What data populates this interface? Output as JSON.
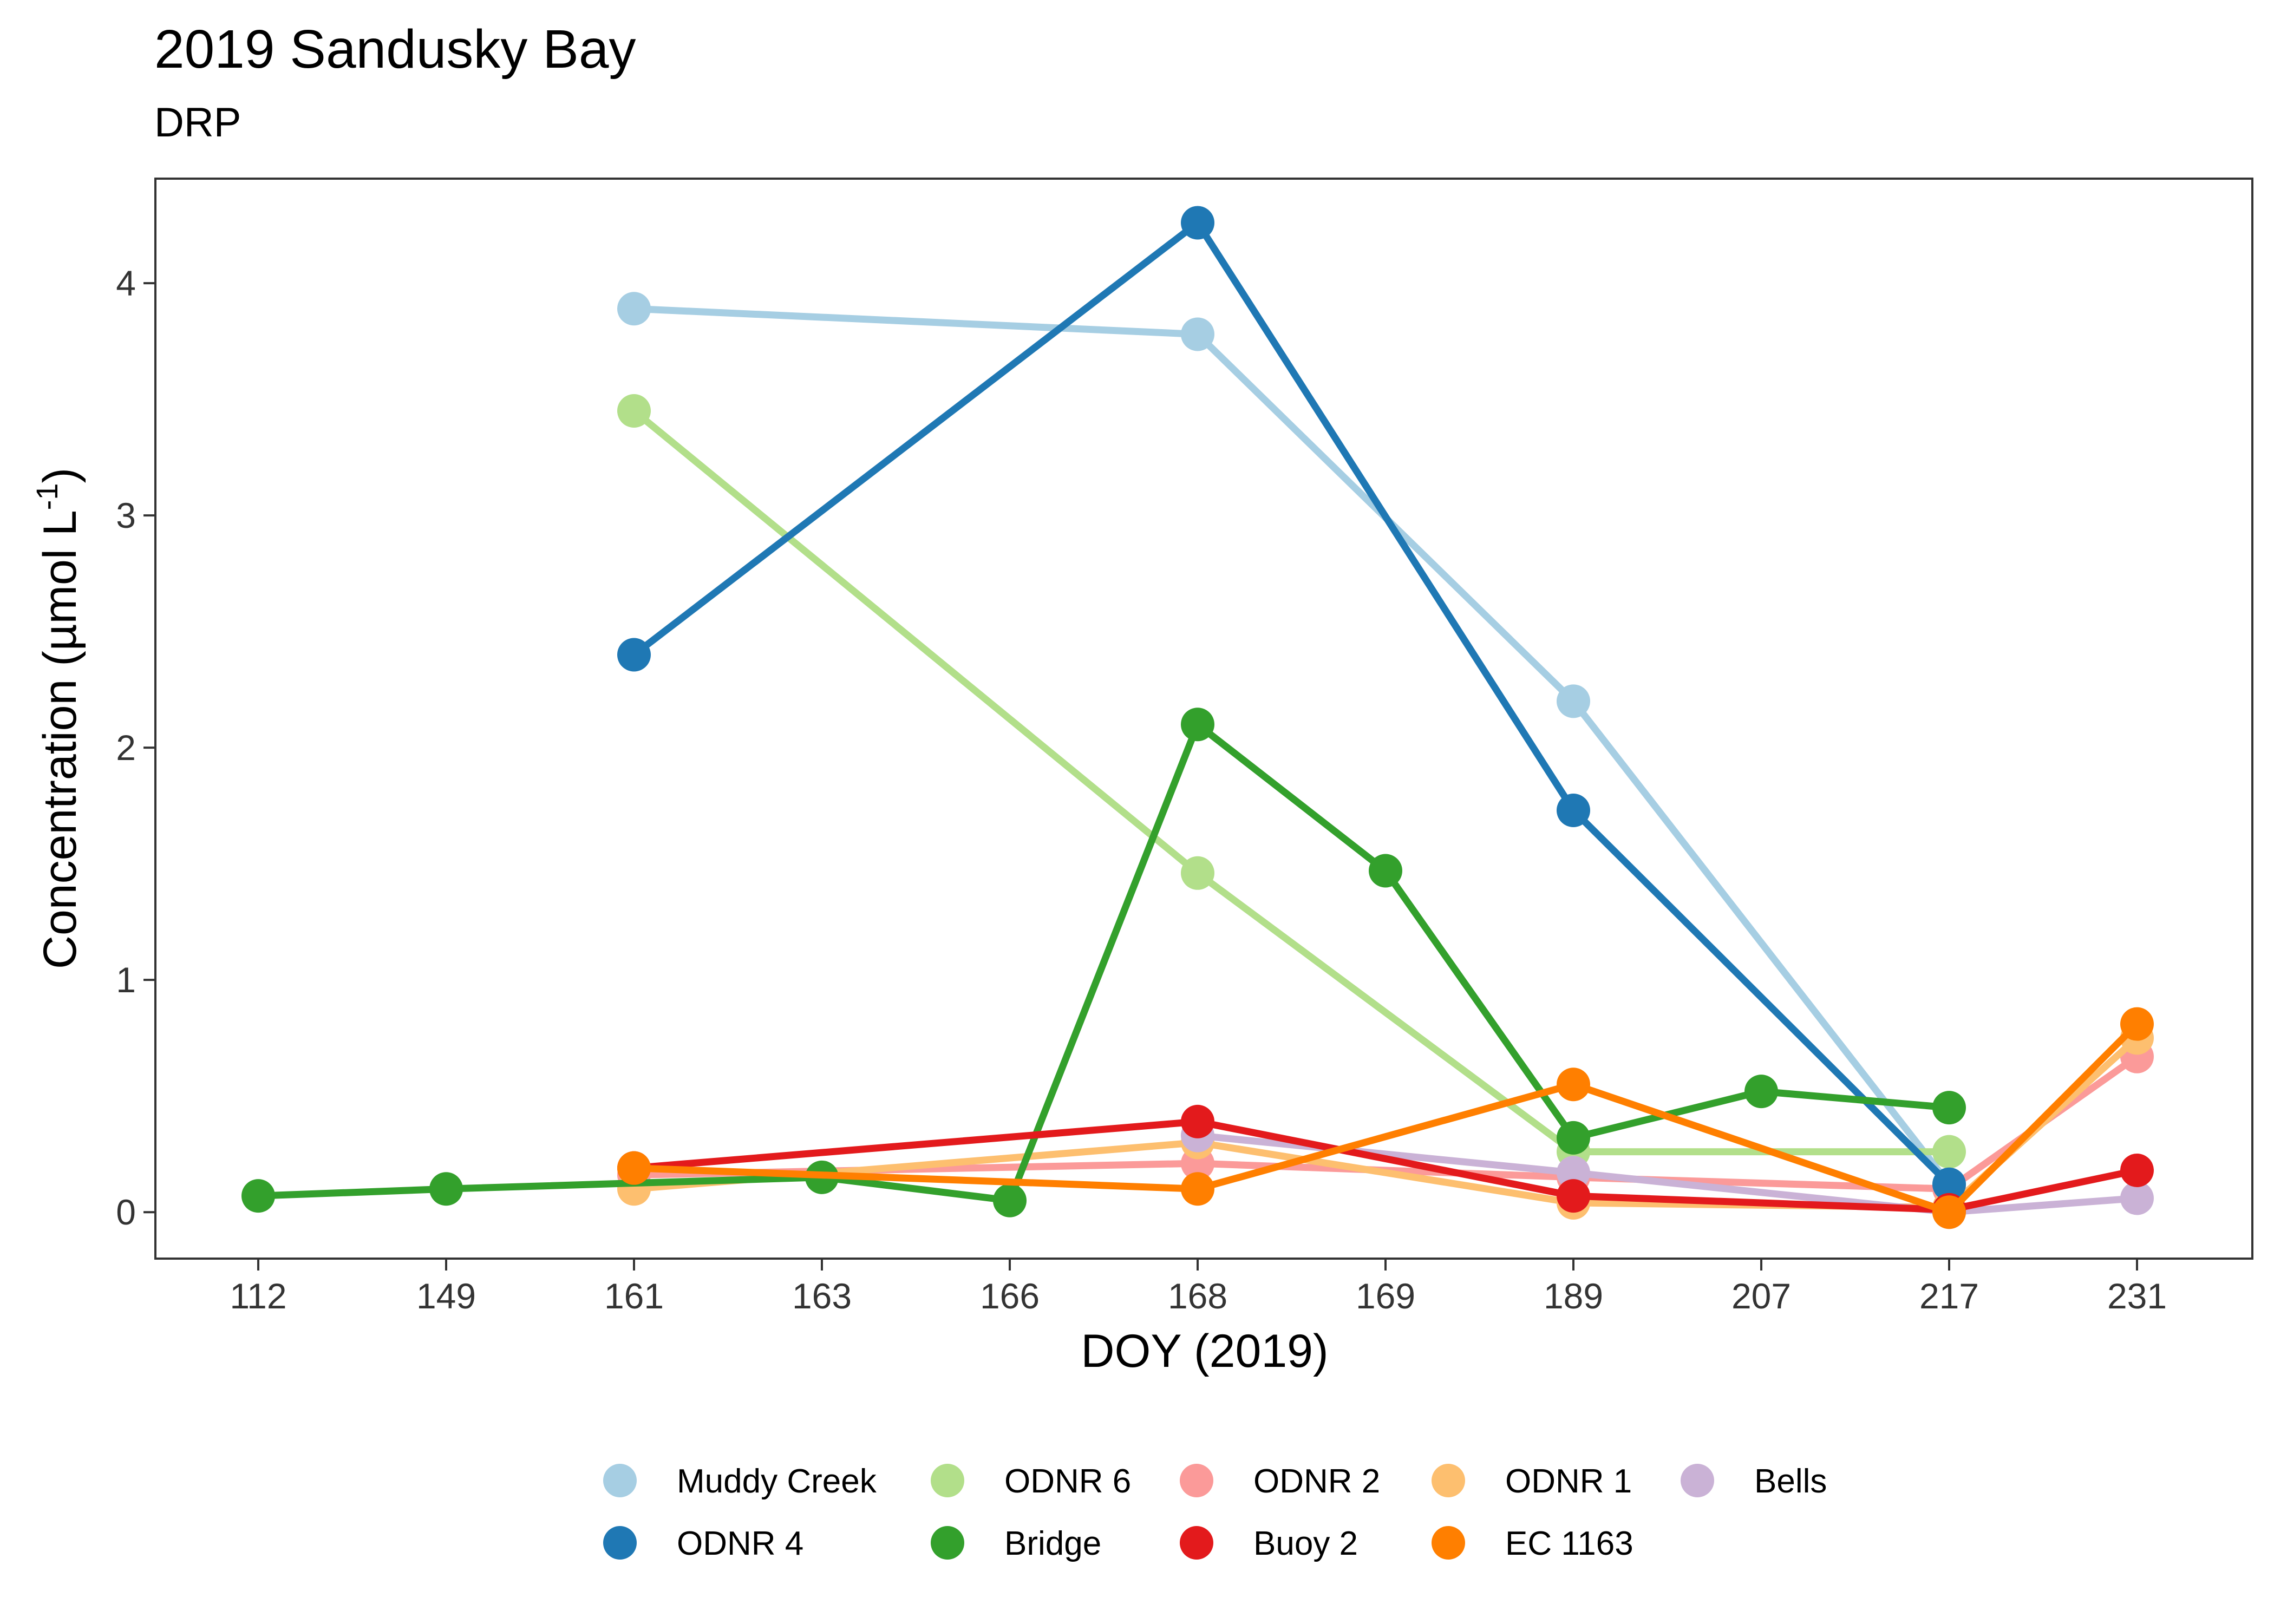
{
  "chart_data": {
    "type": "line",
    "title": "2019 Sandusky Bay",
    "subtitle": "DRP",
    "xlabel": "DOY (2019)",
    "ylabel": "Concentration (µmol L",
    "ylabel_superscript": "-1",
    "ylabel_close": ")",
    "categories": [
      "112",
      "149",
      "161",
      "163",
      "166",
      "168",
      "169",
      "189",
      "207",
      "217",
      "231"
    ],
    "yticks": [
      "0",
      "1",
      "2",
      "3",
      "4"
    ],
    "ylim": [
      -0.2,
      4.45
    ],
    "grid": false,
    "legend_position": "bottom",
    "series": [
      {
        "name": "Muddy Creek",
        "color": "#a6cee3",
        "points": [
          [
            "161",
            3.89
          ],
          [
            "168",
            3.78
          ],
          [
            "189",
            2.2
          ],
          [
            "217",
            0.12
          ]
        ]
      },
      {
        "name": "ODNR 6",
        "color": "#b2df8a",
        "points": [
          [
            "161",
            3.45
          ],
          [
            "168",
            1.46
          ],
          [
            "189",
            0.26
          ],
          [
            "217",
            0.26
          ]
        ]
      },
      {
        "name": "ODNR 2",
        "color": "#fb9a99",
        "points": [
          [
            "161",
            0.16
          ],
          [
            "168",
            0.21
          ],
          [
            "189",
            0.15
          ],
          [
            "217",
            0.1
          ],
          [
            "231",
            0.67
          ]
        ]
      },
      {
        "name": "ODNR 1",
        "color": "#fdbf6f",
        "points": [
          [
            "161",
            0.1
          ],
          [
            "168",
            0.3
          ],
          [
            "189",
            0.04
          ],
          [
            "217",
            0.02
          ],
          [
            "231",
            0.75
          ]
        ]
      },
      {
        "name": "Bells",
        "color": "#cab2d6",
        "points": [
          [
            "168",
            0.33
          ],
          [
            "189",
            0.17
          ],
          [
            "217",
            0.0
          ],
          [
            "231",
            0.06
          ]
        ]
      },
      {
        "name": "ODNR 4",
        "color": "#1f78b4",
        "points": [
          [
            "161",
            2.4
          ],
          [
            "168",
            4.26
          ],
          [
            "189",
            1.73
          ],
          [
            "217",
            0.12
          ]
        ]
      },
      {
        "name": "Bridge",
        "color": "#33a02c",
        "points": [
          [
            "112",
            0.07
          ],
          [
            "149",
            0.1
          ],
          [
            "163",
            0.15
          ],
          [
            "166",
            0.05
          ],
          [
            "168",
            2.1
          ],
          [
            "169",
            1.47
          ],
          [
            "189",
            0.32
          ],
          [
            "207",
            0.52
          ],
          [
            "217",
            0.45
          ]
        ]
      },
      {
        "name": "Buoy 2",
        "color": "#e31a1c",
        "points": [
          [
            "161",
            0.19
          ],
          [
            "168",
            0.39
          ],
          [
            "189",
            0.07
          ],
          [
            "217",
            0.01
          ],
          [
            "231",
            0.18
          ]
        ]
      },
      {
        "name": "EC 1163",
        "color": "#ff7f00",
        "points": [
          [
            "161",
            0.19
          ],
          [
            "168",
            0.1
          ],
          [
            "189",
            0.55
          ],
          [
            "217",
            0.0
          ],
          [
            "231",
            0.81
          ]
        ]
      }
    ],
    "draw_order": [
      "Muddy Creek",
      "ODNR 6",
      "ODNR 2",
      "ODNR 1",
      "Bells",
      "ODNR 4",
      "Bridge",
      "Buoy 2",
      "EC 1163"
    ],
    "legend_rows": [
      [
        "Muddy Creek",
        "ODNR 6",
        "ODNR 2",
        "ODNR 1",
        "Bells"
      ],
      [
        "ODNR 4",
        "Bridge",
        "Buoy 2",
        "EC 1163"
      ]
    ]
  }
}
